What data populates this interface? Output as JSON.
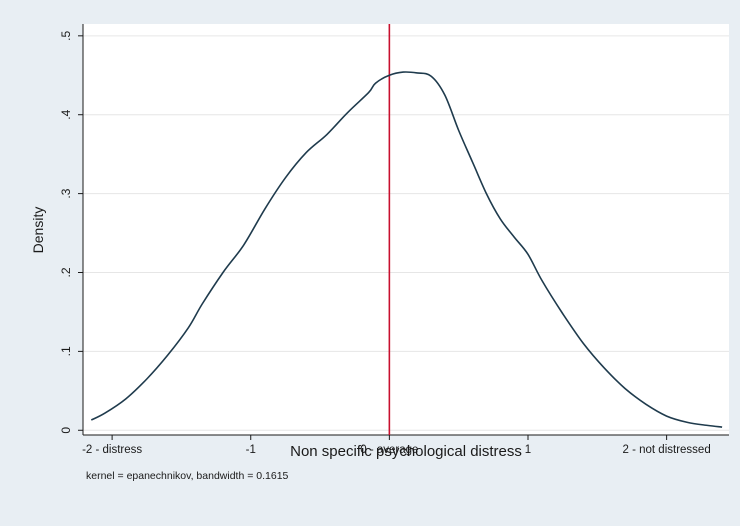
{
  "chart_data": {
    "type": "line",
    "title": "",
    "xlabel": "Non specific psychological distress",
    "ylabel": "Density",
    "note": "kernel = epanechnikov, bandwidth = 0.1615",
    "xlim": [
      -2.21,
      2.45
    ],
    "ylim": [
      -0.006,
      0.515
    ],
    "x_ticks": [
      {
        "value": -2,
        "label": "-2 - distress"
      },
      {
        "value": -1,
        "label": "-1"
      },
      {
        "value": 0,
        "label": "0 - average"
      },
      {
        "value": 1,
        "label": "1"
      },
      {
        "value": 2,
        "label": "2 - not distressed"
      }
    ],
    "y_ticks": [
      {
        "value": 0,
        "label": "0"
      },
      {
        "value": 0.1,
        "label": ".1"
      },
      {
        "value": 0.2,
        "label": ".2"
      },
      {
        "value": 0.3,
        "label": ".3"
      },
      {
        "value": 0.4,
        "label": ".4"
      },
      {
        "value": 0.5,
        "label": ".5"
      }
    ],
    "reference_line": {
      "x": 0,
      "color": "#c8102e"
    },
    "series": [
      {
        "color": "#1f3b4d",
        "x": [
          -2.15,
          -2.05,
          -1.9,
          -1.75,
          -1.6,
          -1.45,
          -1.35,
          -1.2,
          -1.05,
          -0.9,
          -0.75,
          -0.6,
          -0.45,
          -0.3,
          -0.15,
          -0.1,
          0.0,
          0.1,
          0.2,
          0.3,
          0.4,
          0.5,
          0.6,
          0.7,
          0.8,
          0.9,
          1.0,
          1.1,
          1.25,
          1.4,
          1.55,
          1.7,
          1.85,
          2.0,
          2.15,
          2.3,
          2.4
        ],
        "y": [
          0.013,
          0.022,
          0.04,
          0.065,
          0.095,
          0.13,
          0.16,
          0.2,
          0.235,
          0.28,
          0.32,
          0.352,
          0.375,
          0.403,
          0.428,
          0.44,
          0.45,
          0.454,
          0.453,
          0.449,
          0.425,
          0.38,
          0.34,
          0.3,
          0.268,
          0.245,
          0.223,
          0.19,
          0.148,
          0.11,
          0.079,
          0.053,
          0.033,
          0.018,
          0.01,
          0.006,
          0.004
        ]
      }
    ]
  }
}
